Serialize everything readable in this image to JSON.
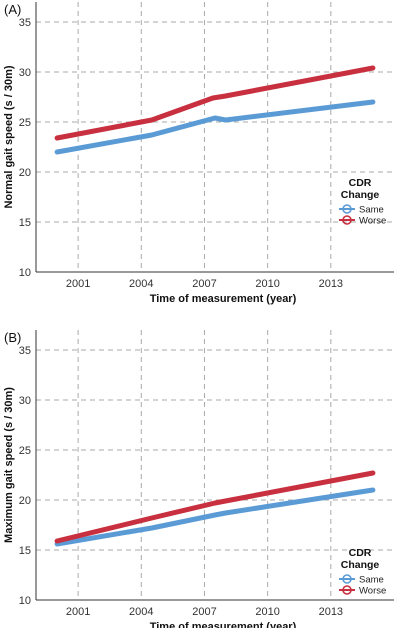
{
  "chart_data": [
    {
      "type": "line",
      "panel_label": "(A)",
      "xlabel": "Time of measurement (year)",
      "ylabel": "Normal gait speed (s / 30m)",
      "xlim": [
        1999,
        2016
      ],
      "ylim": [
        10,
        37
      ],
      "xticks": [
        2001,
        2004,
        2007,
        2010,
        2013
      ],
      "yticks": [
        10,
        15,
        20,
        25,
        30,
        35
      ],
      "grid": true,
      "legend": {
        "title_line1": "CDR",
        "title_line2": "Change",
        "placement": "right"
      },
      "series": [
        {
          "name": "Same",
          "color": "#5b9bd5",
          "points": [
            [
              2000,
              22.0
            ],
            [
              2004.5,
              23.7
            ],
            [
              2007.5,
              25.4
            ],
            [
              2008,
              25.2
            ],
            [
              2015,
              27.0
            ]
          ]
        },
        {
          "name": "Worse",
          "color": "#c8303f",
          "points": [
            [
              2000,
              23.4
            ],
            [
              2004.5,
              25.2
            ],
            [
              2007.4,
              27.4
            ],
            [
              2008,
              27.6
            ],
            [
              2015,
              30.4
            ]
          ]
        }
      ]
    },
    {
      "type": "line",
      "panel_label": "(B)",
      "xlabel": "Time of measurement (year)",
      "ylabel": "Maximum gait speed (s / 30m)",
      "xlim": [
        1999,
        2016
      ],
      "ylim": [
        10,
        37
      ],
      "xticks": [
        2001,
        2004,
        2007,
        2010,
        2013
      ],
      "yticks": [
        10,
        15,
        20,
        25,
        30,
        35
      ],
      "grid": true,
      "legend": {
        "title_line1": "CDR",
        "title_line2": "Change",
        "placement": "bottom-right"
      },
      "series": [
        {
          "name": "Same",
          "color": "#5b9bd5",
          "points": [
            [
              2000,
              15.6
            ],
            [
              2004.5,
              17.2
            ],
            [
              2007.5,
              18.5
            ],
            [
              2008,
              18.7
            ],
            [
              2015,
              21.0
            ]
          ]
        },
        {
          "name": "Worse",
          "color": "#c8303f",
          "points": [
            [
              2000,
              15.9
            ],
            [
              2004.5,
              18.2
            ],
            [
              2007.5,
              19.7
            ],
            [
              2008,
              19.9
            ],
            [
              2015,
              22.7
            ]
          ]
        }
      ]
    }
  ]
}
